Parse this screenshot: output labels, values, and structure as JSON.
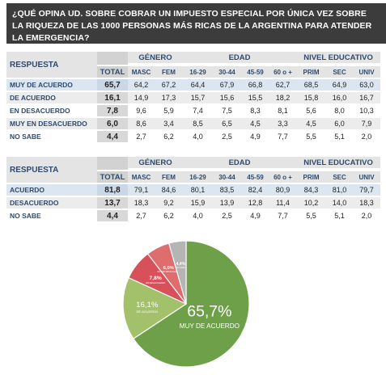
{
  "header": {
    "title": "¿QUÉ OPINA UD. SOBRE COBRAR UN IMPUESTO ESPECIAL POR ÚNICA VEZ SOBRE LA RIQUEZA DE LAS 1000 PERSONAS MÁS RICAS DE LA ARGENTINA PARA ATENDER LA EMERGENCIA?"
  },
  "table1": {
    "header_groups": [
      "GÉNERO",
      "EDAD",
      "NIVEL EDUCATIVO"
    ],
    "columns": [
      "RESPUESTA",
      "TOTAL",
      "MASC",
      "FEM",
      "16-29",
      "30-44",
      "45-59",
      "60 o +",
      "PRIM",
      "SEC",
      "UNIV"
    ],
    "rows": [
      [
        "MUY DE ACUERDO",
        "65,7",
        "64,2",
        "67,2",
        "64,4",
        "67,9",
        "66,8",
        "62,7",
        "68,5",
        "64,9",
        "63,0"
      ],
      [
        "DE ACUERDO",
        "16,1",
        "14,9",
        "17,3",
        "15,7",
        "15,6",
        "15,5",
        "18,2",
        "15,8",
        "16,0",
        "16,7"
      ],
      [
        "EN DESACUERDO",
        "7,8",
        "9,6",
        "5,9",
        "7,4",
        "7,5",
        "8,3",
        "8,1",
        "5,6",
        "8,0",
        "10,3"
      ],
      [
        "MUY EN DESACUERDO",
        "6,0",
        "8,6",
        "3,4",
        "8,5",
        "6,5",
        "4,5",
        "3,3",
        "4,5",
        "6,0",
        "7,9"
      ],
      [
        "NO SABE",
        "4,4",
        "2,7",
        "6,2",
        "4,0",
        "2,5",
        "4,9",
        "7,7",
        "5,5",
        "5,1",
        "2,0"
      ]
    ]
  },
  "table2": {
    "header_groups": [
      "GÉNERO",
      "EDAD",
      "NIVEL EDUCATIVO"
    ],
    "columns": [
      "RESPUESTA",
      "TOTAL",
      "MASC",
      "FEM",
      "16-29",
      "30-44",
      "45-59",
      "60 o +",
      "PRIM",
      "SEC",
      "UNIV"
    ],
    "rows": [
      [
        "ACUERDO",
        "81,8",
        "79,1",
        "84,6",
        "80,1",
        "83,5",
        "82,4",
        "80,9",
        "84,3",
        "81,0",
        "79,7"
      ],
      [
        "DESACUERDO",
        "13,7",
        "18,3",
        "9,2",
        "15,9",
        "13,9",
        "12,8",
        "11,4",
        "10,2",
        "14,0",
        "18,3"
      ],
      [
        "NO SABE",
        "4,4",
        "2,7",
        "6,2",
        "4,0",
        "2,5",
        "4,9",
        "7,7",
        "5,5",
        "5,1",
        "2,0"
      ]
    ]
  },
  "chart_data": {
    "type": "pie",
    "categories": [
      "MUY DE ACUERDO",
      "DE ACUERDO",
      "EN DESACUERDO",
      "MUY EN DESACUERDO",
      "NO SABE"
    ],
    "values": [
      65.7,
      16.1,
      7.8,
      6.0,
      4.4
    ],
    "value_labels": [
      "65,7%",
      "16,1%",
      "7,8%",
      "6,0%",
      "4,4%"
    ],
    "colors": [
      "#6ea04a",
      "#a3c16b",
      "#d8505a",
      "#e06d6d",
      "#b5b5b5"
    ]
  }
}
